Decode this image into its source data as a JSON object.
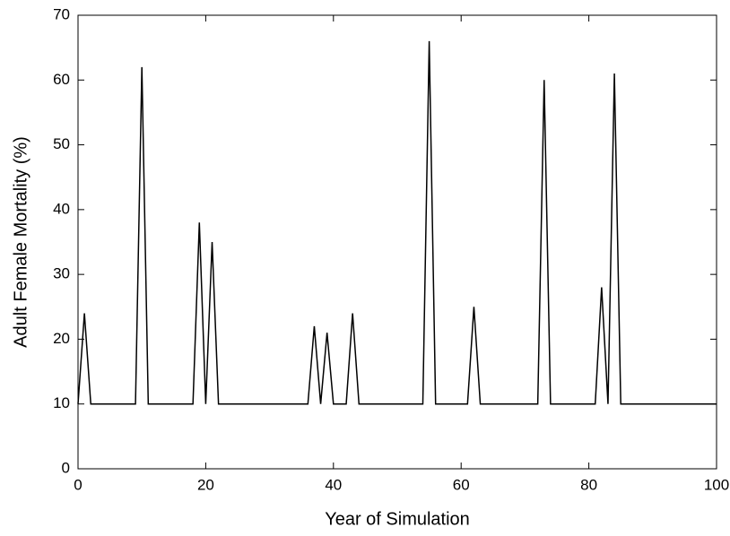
{
  "chart_data": {
    "type": "line",
    "xlabel": "Year of Simulation",
    "ylabel": "Adult Female Mortality (%)",
    "x": [
      0,
      1,
      2,
      3,
      4,
      5,
      6,
      7,
      8,
      9,
      10,
      11,
      12,
      13,
      14,
      15,
      16,
      17,
      18,
      19,
      20,
      21,
      22,
      23,
      24,
      25,
      26,
      27,
      28,
      29,
      30,
      31,
      32,
      33,
      34,
      35,
      36,
      37,
      38,
      39,
      40,
      41,
      42,
      43,
      44,
      45,
      46,
      47,
      48,
      49,
      50,
      51,
      52,
      53,
      54,
      55,
      56,
      57,
      58,
      59,
      60,
      61,
      62,
      63,
      64,
      65,
      66,
      67,
      68,
      69,
      70,
      71,
      72,
      73,
      74,
      75,
      76,
      77,
      78,
      79,
      80,
      81,
      82,
      83,
      84,
      85,
      86,
      87,
      88,
      89,
      90,
      91,
      92,
      93,
      94,
      95,
      96,
      97,
      98,
      99,
      100
    ],
    "values": [
      10,
      24,
      10,
      10,
      10,
      10,
      10,
      10,
      10,
      10,
      62,
      10,
      10,
      10,
      10,
      10,
      10,
      10,
      10,
      38,
      10,
      35,
      10,
      10,
      10,
      10,
      10,
      10,
      10,
      10,
      10,
      10,
      10,
      10,
      10,
      10,
      10,
      22,
      10,
      21,
      10,
      10,
      10,
      24,
      10,
      10,
      10,
      10,
      10,
      10,
      10,
      10,
      10,
      10,
      10,
      66,
      10,
      10,
      10,
      10,
      10,
      10,
      25,
      10,
      10,
      10,
      10,
      10,
      10,
      10,
      10,
      10,
      10,
      60,
      10,
      10,
      10,
      10,
      10,
      10,
      10,
      10,
      28,
      10,
      61,
      10,
      10,
      10,
      10,
      10,
      10,
      10,
      10,
      10,
      10,
      10,
      10,
      10,
      10,
      10,
      10
    ],
    "color": "#000000",
    "xlim": [
      0,
      100
    ],
    "xticks": [
      0,
      20,
      40,
      60,
      80,
      100
    ],
    "ylim": [
      0,
      70
    ],
    "yticks": [
      0,
      10,
      20,
      30,
      40,
      50,
      60,
      70
    ]
  }
}
